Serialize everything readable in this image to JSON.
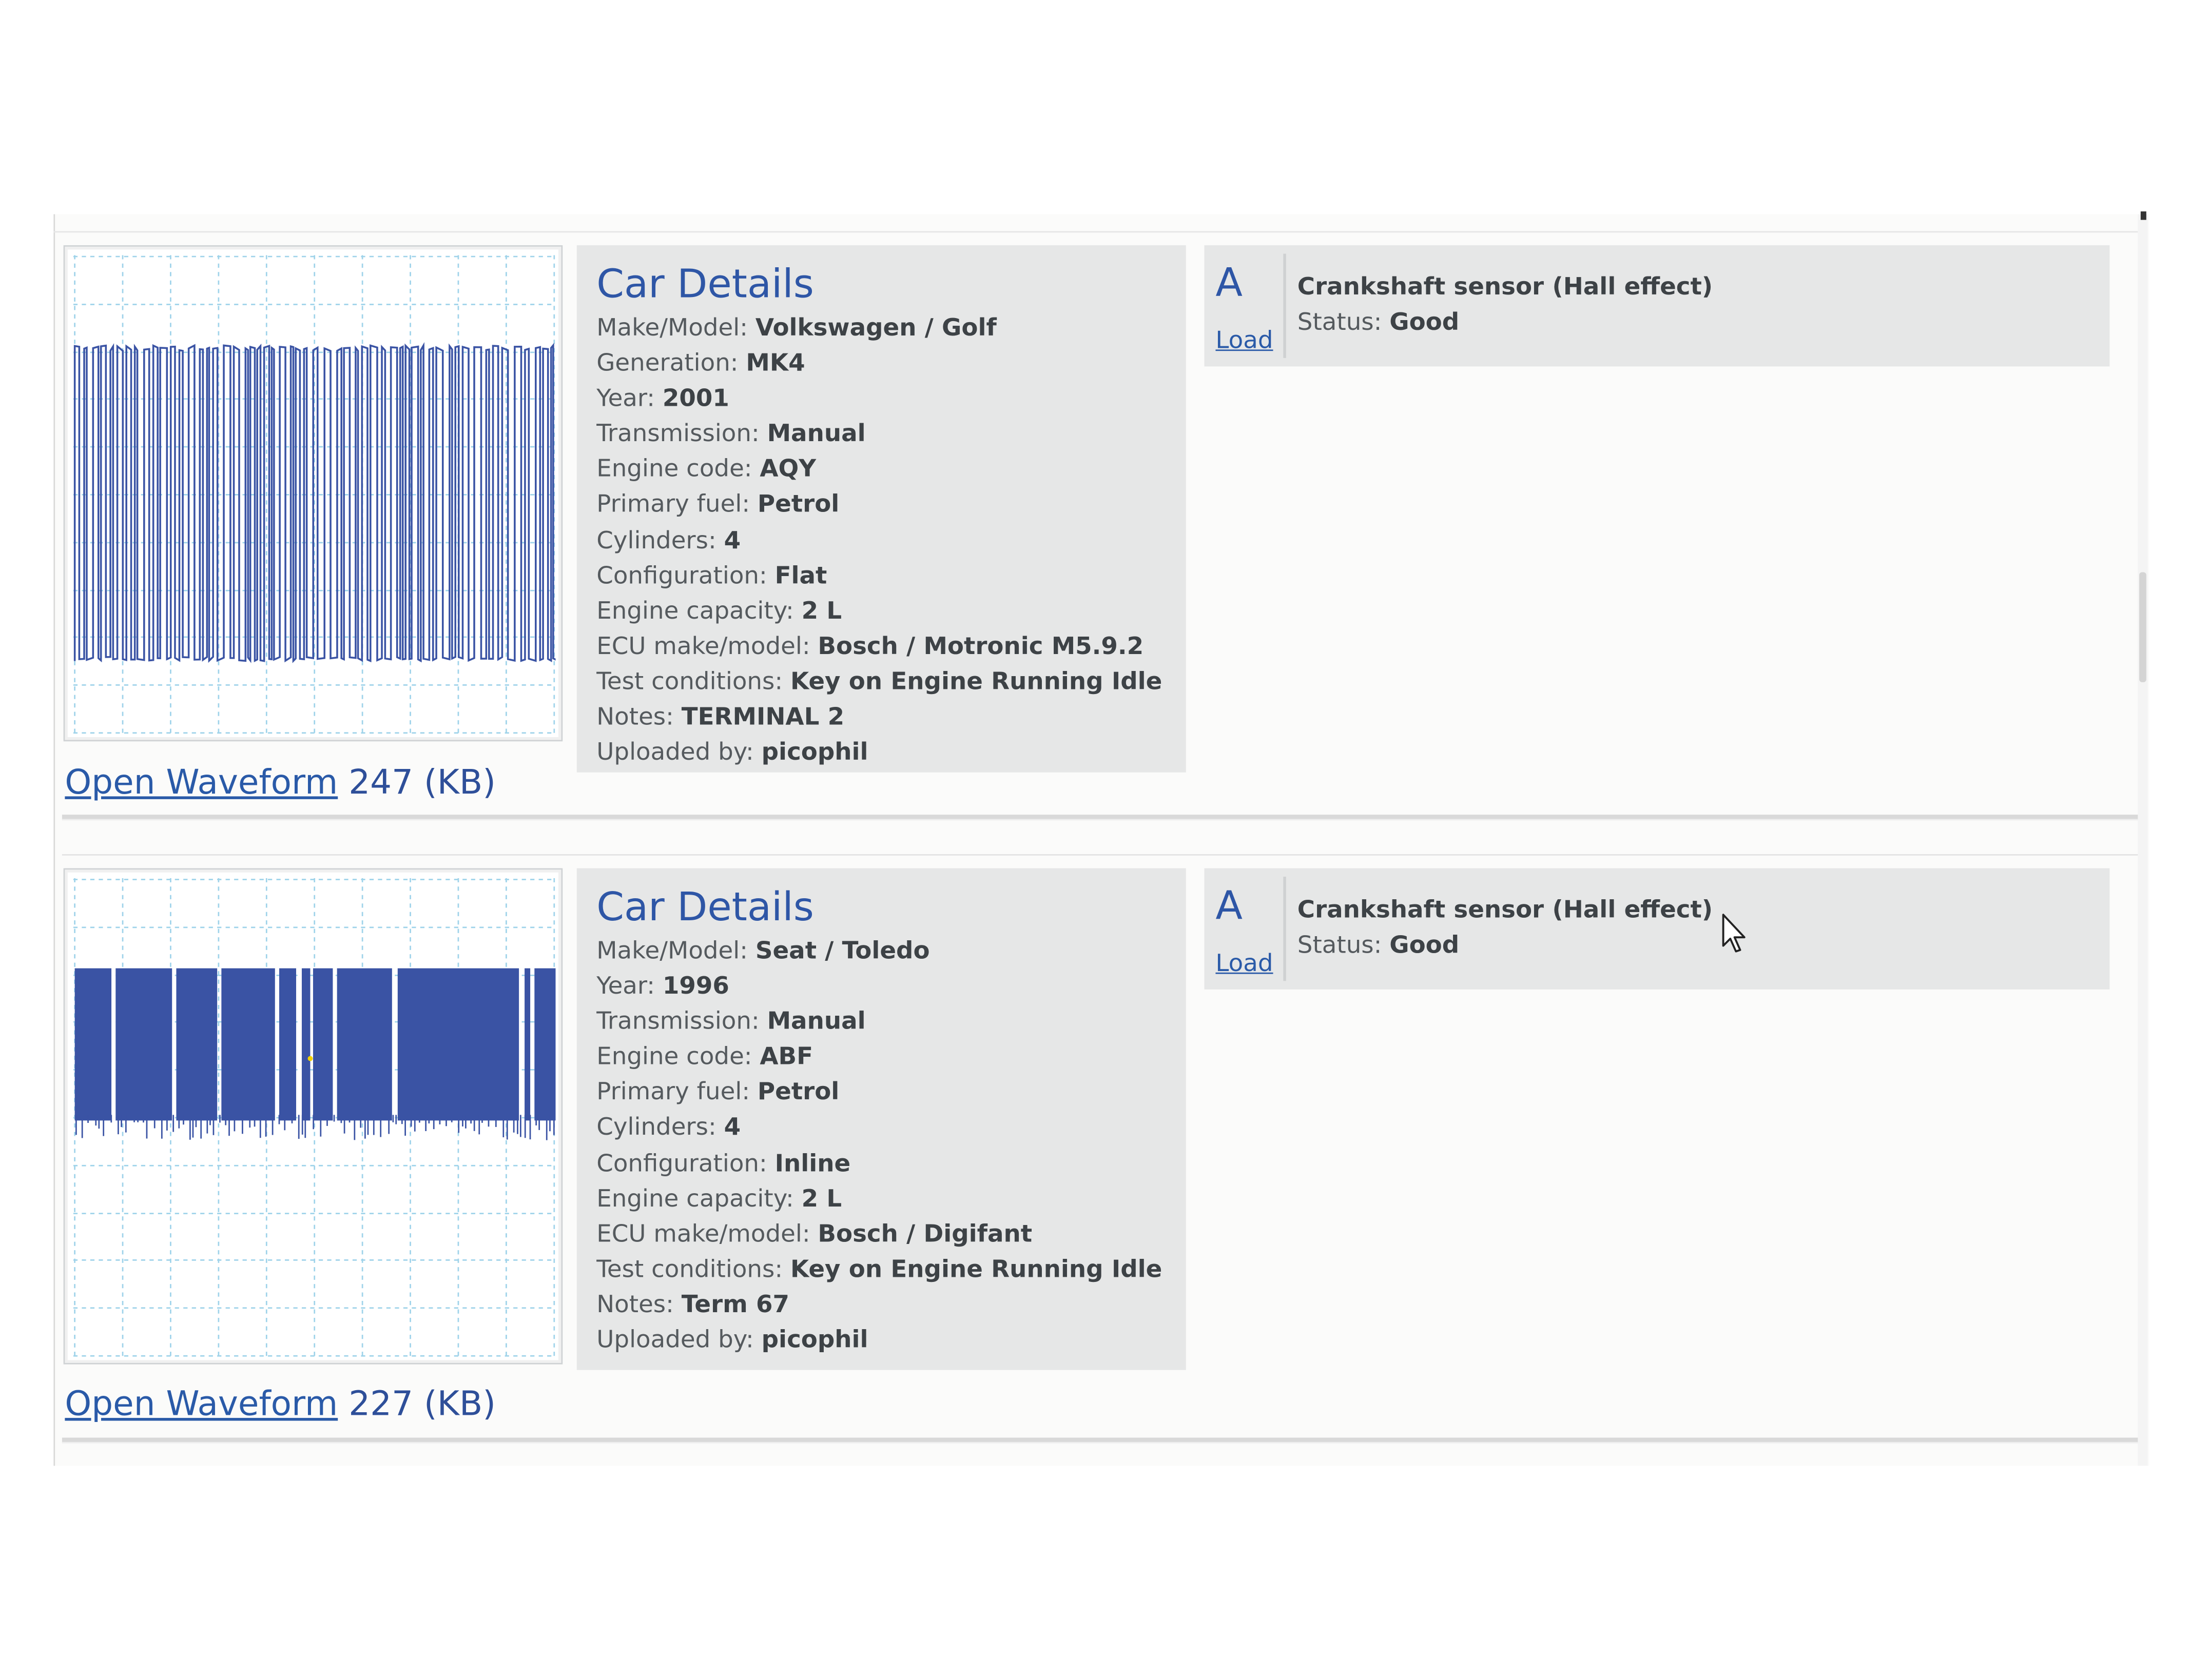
{
  "entries": [
    {
      "car_details_title": "Car Details",
      "details": [
        {
          "label": "Make/Model: ",
          "value": "Volkswagen / Golf"
        },
        {
          "label": "Generation: ",
          "value": "MK4"
        },
        {
          "label": "Year: ",
          "value": "2001"
        },
        {
          "label": "Transmission: ",
          "value": "Manual"
        },
        {
          "label": "Engine code: ",
          "value": "AQY"
        },
        {
          "label": "Primary fuel: ",
          "value": "Petrol"
        },
        {
          "label": "Cylinders: ",
          "value": "4"
        },
        {
          "label": "Configuration: ",
          "value": "Flat"
        },
        {
          "label": "Engine capacity: ",
          "value": "2 L"
        },
        {
          "label": "ECU make/model: ",
          "value": "Bosch / Motronic M5.9.2"
        },
        {
          "label": "Test conditions: ",
          "value": "Key on Engine Running Idle"
        },
        {
          "label": "Notes: ",
          "value": "TERMINAL 2"
        },
        {
          "label": "Uploaded by: ",
          "value": "picophil"
        }
      ],
      "open_waveform_label": "Open Waveform",
      "file_size": "247 (KB)",
      "channel": {
        "letter": "A",
        "load_label": "Load",
        "sensor": "Crankshaft sensor (Hall effect)",
        "status_label": "Status: ",
        "status_value": "Good"
      },
      "waveform_color": "#3a53a4"
    },
    {
      "car_details_title": "Car Details",
      "details": [
        {
          "label": "Make/Model: ",
          "value": "Seat / Toledo"
        },
        {
          "label": "Year: ",
          "value": "1996"
        },
        {
          "label": "Transmission: ",
          "value": "Manual"
        },
        {
          "label": "Engine code: ",
          "value": "ABF"
        },
        {
          "label": "Primary fuel: ",
          "value": "Petrol"
        },
        {
          "label": "Cylinders: ",
          "value": "4"
        },
        {
          "label": "Configuration: ",
          "value": "Inline"
        },
        {
          "label": "Engine capacity: ",
          "value": "2 L"
        },
        {
          "label": "ECU make/model: ",
          "value": "Bosch / Digifant"
        },
        {
          "label": "Test conditions: ",
          "value": "Key on Engine Running Idle"
        },
        {
          "label": "Notes: ",
          "value": "Term 67"
        },
        {
          "label": "Uploaded by: ",
          "value": "picophil"
        }
      ],
      "open_waveform_label": "Open Waveform",
      "file_size": "227 (KB)",
      "channel": {
        "letter": "A",
        "load_label": "Load",
        "sensor": "Crankshaft sensor (Hall effect)",
        "status_label": "Status: ",
        "status_value": "Good"
      },
      "waveform_color": "#3a53a4"
    }
  ],
  "colors": {
    "link": "#2a5aa8",
    "heading": "#2e56a6",
    "panel_bg": "#e6e7e7",
    "grid": "#9fd3ea",
    "trace": "#3a53a4"
  }
}
